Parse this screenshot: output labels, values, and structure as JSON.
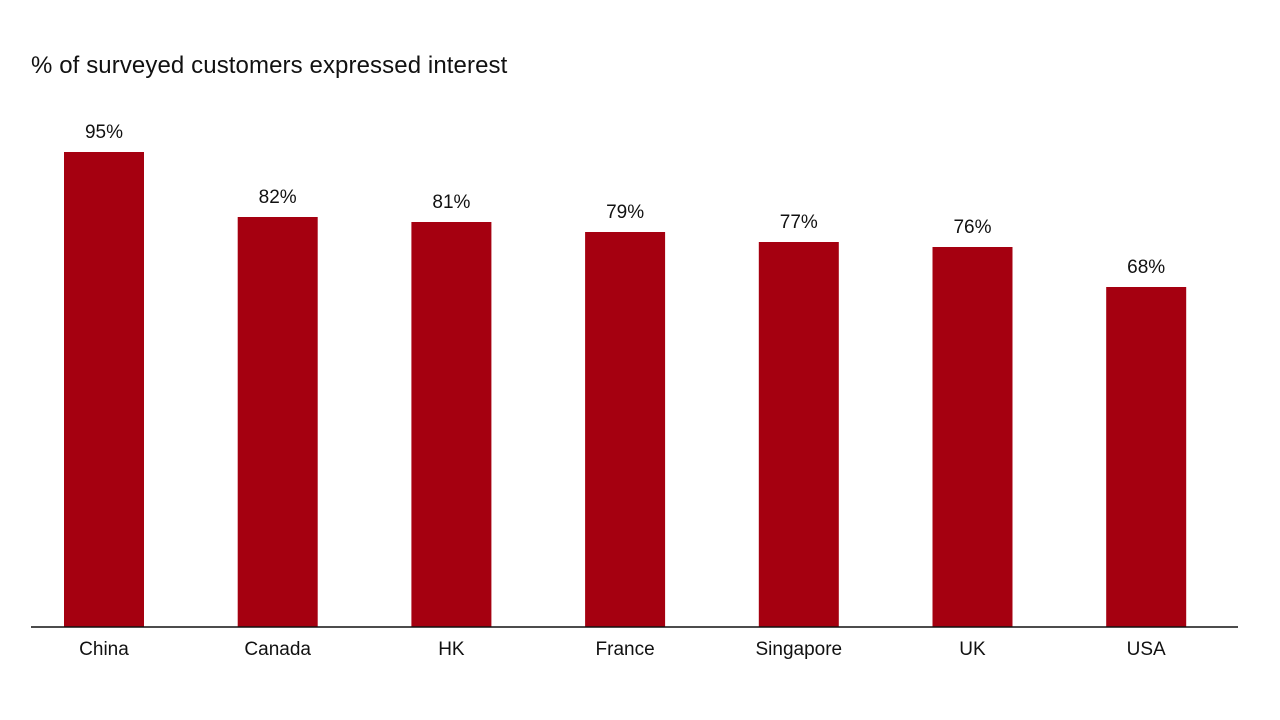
{
  "chart_data": {
    "type": "bar",
    "title": "% of surveyed customers expressed interest",
    "categories": [
      "China",
      "Canada",
      "HK",
      "France",
      "Singapore",
      "UK",
      "USA"
    ],
    "values": [
      95,
      82,
      81,
      79,
      77,
      76,
      68
    ],
    "value_labels": [
      "95%",
      "82%",
      "81%",
      "79%",
      "77%",
      "76%",
      "68%"
    ],
    "ylim": [
      0,
      100
    ],
    "grid": false,
    "legend": "none",
    "bar_color": "#a50010",
    "axis_color": "#111111"
  }
}
